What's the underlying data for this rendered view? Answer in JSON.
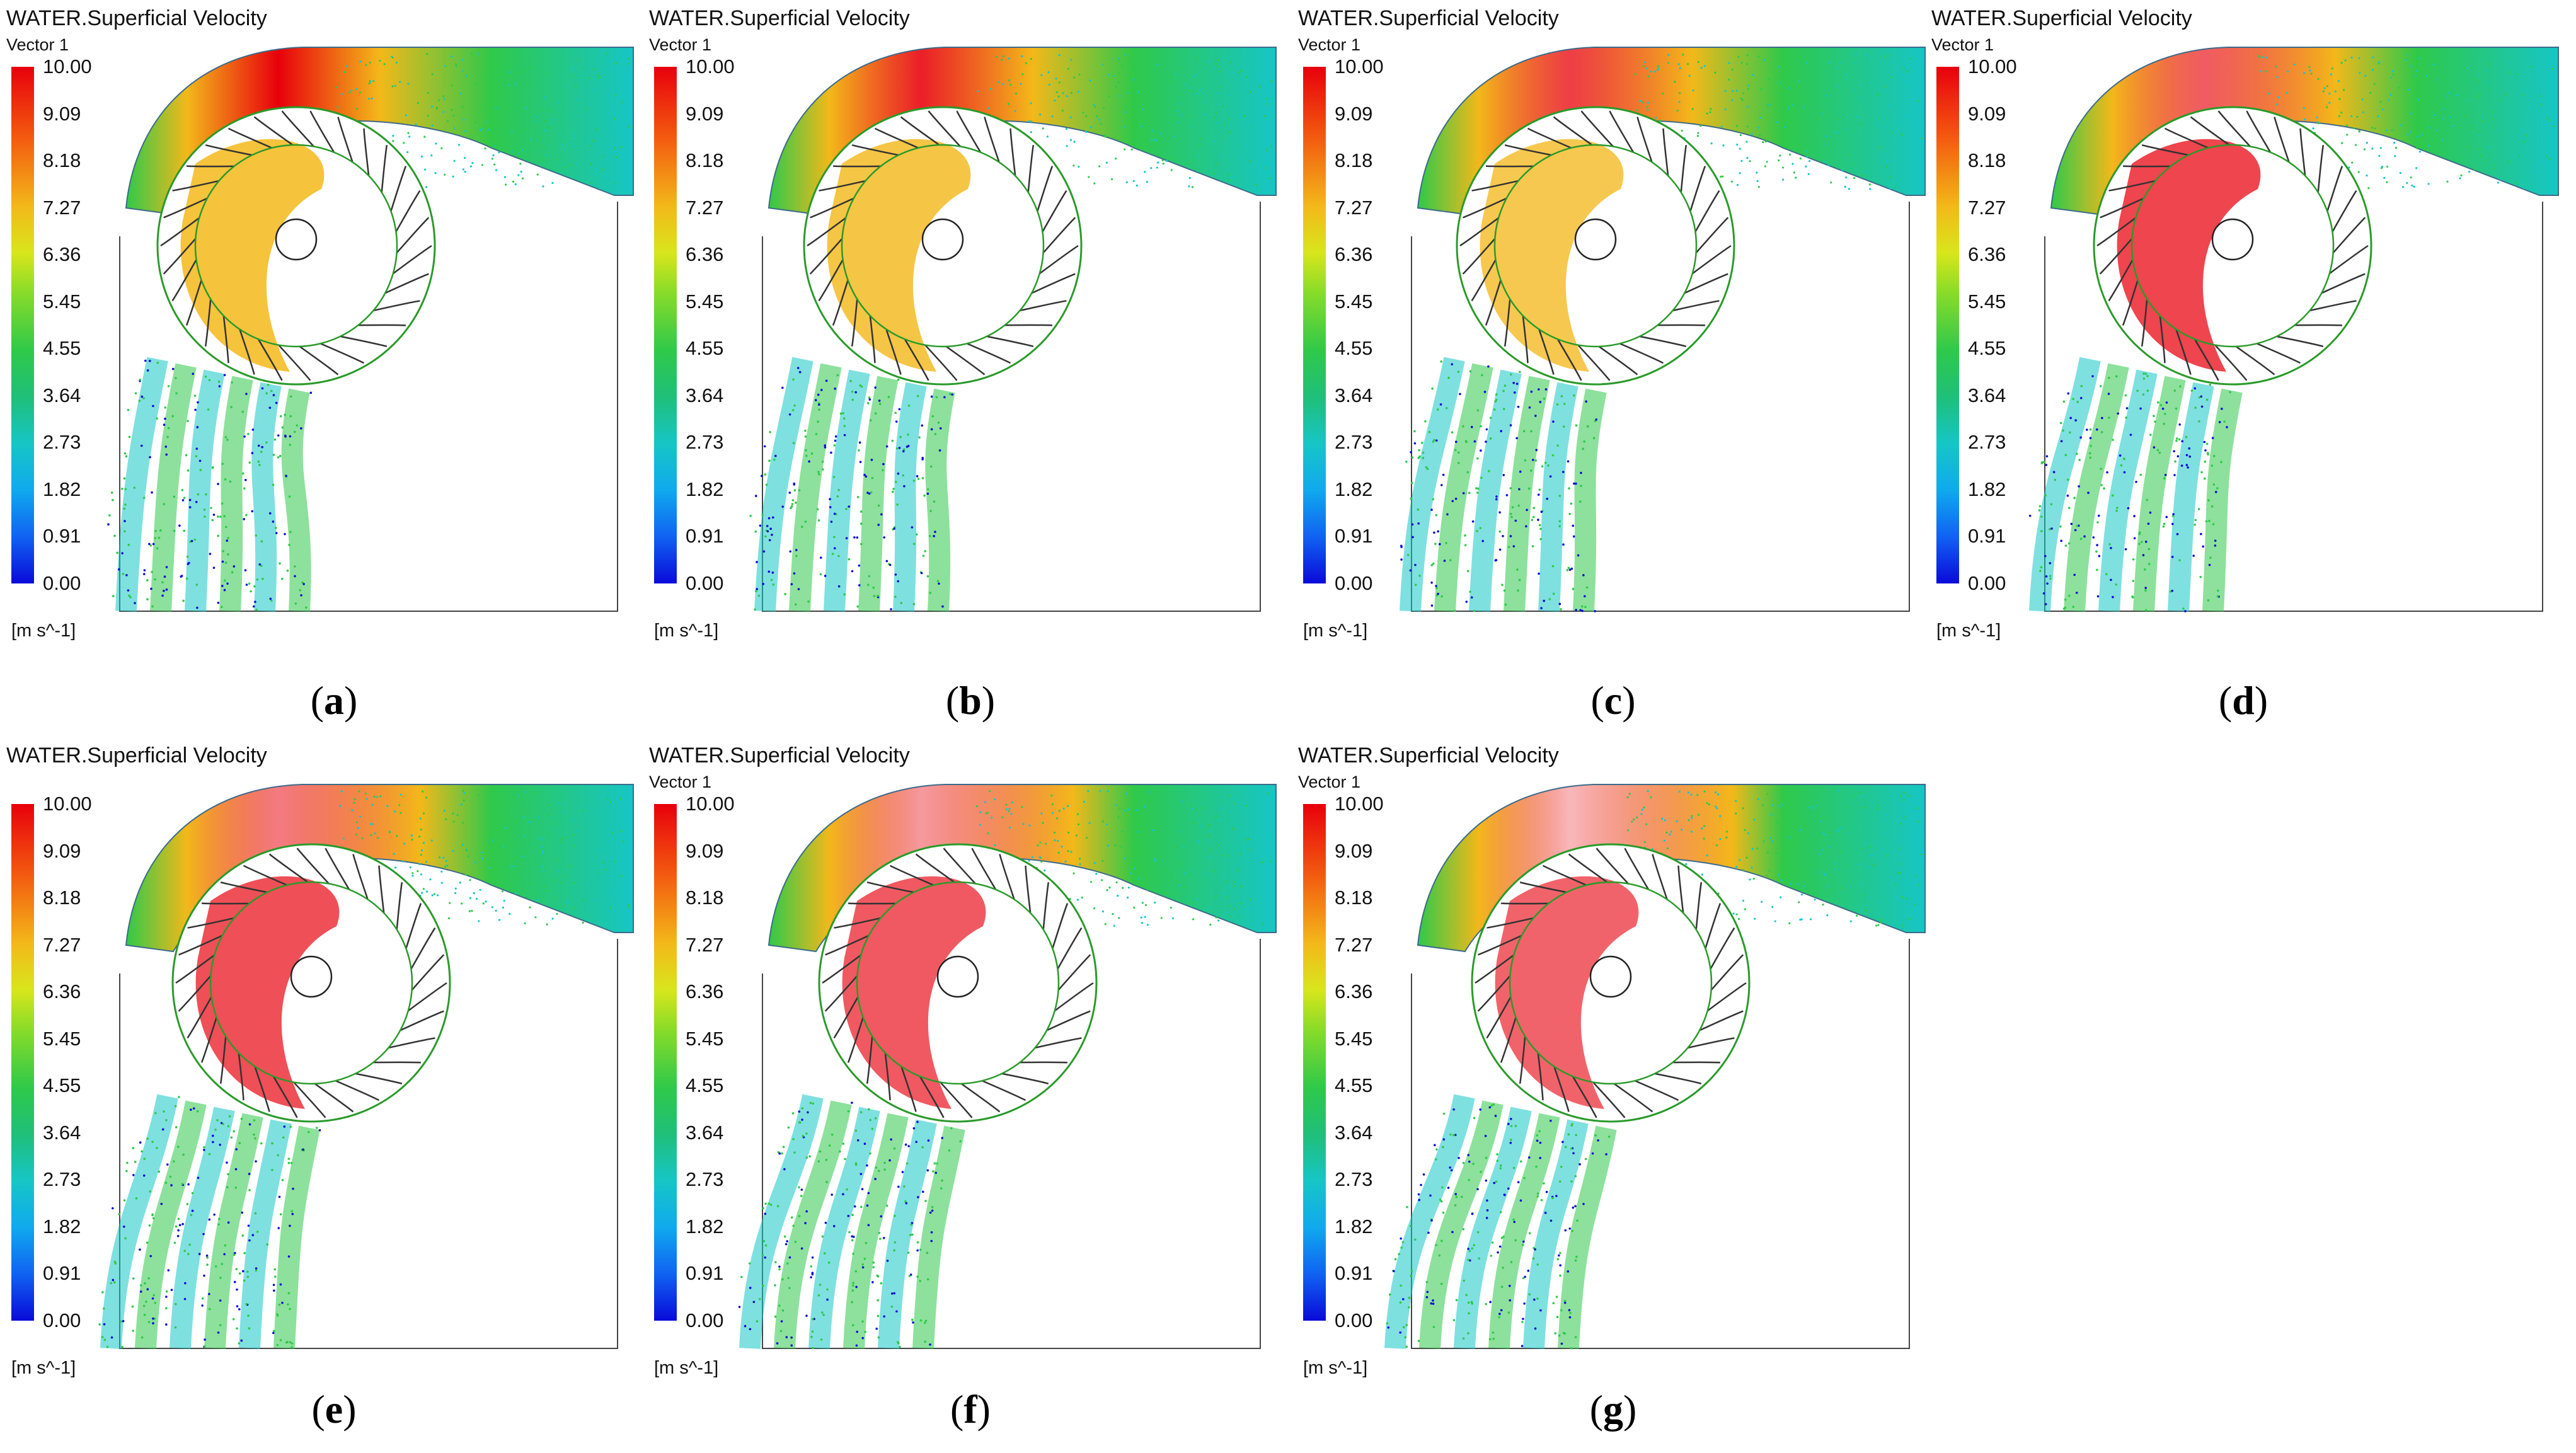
{
  "legend": {
    "title": "WATER.Superficial Velocity",
    "subtitle": "Vector 1",
    "ticks": [
      "10.00",
      "9.09",
      "8.18",
      "7.27",
      "6.36",
      "5.45",
      "4.55",
      "3.64",
      "2.73",
      "1.82",
      "0.91",
      "0.00"
    ],
    "unit": "[m s^-1]",
    "range": [
      0,
      10.0
    ]
  },
  "panels": [
    {
      "id": "a",
      "caption": "a",
      "show_subtitle": true,
      "stage": 0
    },
    {
      "id": "b",
      "caption": "b",
      "show_subtitle": true,
      "stage": 1
    },
    {
      "id": "c",
      "caption": "c",
      "show_subtitle": true,
      "stage": 2
    },
    {
      "id": "d",
      "caption": "d",
      "show_subtitle": true,
      "stage": 3
    },
    {
      "id": "e",
      "caption": "e",
      "show_subtitle": false,
      "stage": 4
    },
    {
      "id": "f",
      "caption": "f",
      "show_subtitle": true,
      "stage": 5
    },
    {
      "id": "g",
      "caption": "g",
      "show_subtitle": true,
      "stage": 6
    }
  ],
  "colors": {
    "max": "#e8000c",
    "high": "#f3b81a",
    "mid": "#2fc94a",
    "low": "#16c6c6",
    "min": "#0a0ad8",
    "runner_inner": "#2a9a2a",
    "blade": "#333333"
  }
}
